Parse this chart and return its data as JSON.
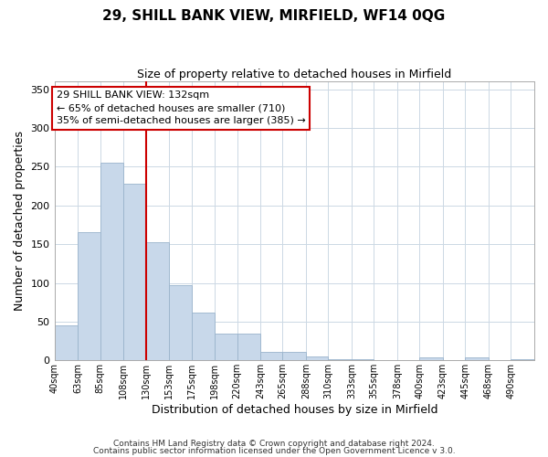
{
  "title": "29, SHILL BANK VIEW, MIRFIELD, WF14 0QG",
  "subtitle": "Size of property relative to detached houses in Mirfield",
  "xlabel": "Distribution of detached houses by size in Mirfield",
  "ylabel": "Number of detached properties",
  "bar_color": "#c8d8ea",
  "bar_edge_color": "#9ab4cc",
  "vline_color": "#cc0000",
  "vline_x": 130,
  "categories": [
    "40sqm",
    "63sqm",
    "85sqm",
    "108sqm",
    "130sqm",
    "153sqm",
    "175sqm",
    "198sqm",
    "220sqm",
    "243sqm",
    "265sqm",
    "288sqm",
    "310sqm",
    "333sqm",
    "355sqm",
    "378sqm",
    "400sqm",
    "423sqm",
    "445sqm",
    "468sqm",
    "490sqm"
  ],
  "bin_edges": [
    40,
    63,
    85,
    108,
    130,
    153,
    175,
    198,
    220,
    243,
    265,
    288,
    310,
    333,
    355,
    378,
    400,
    423,
    445,
    468,
    490
  ],
  "values": [
    45,
    165,
    255,
    228,
    152,
    97,
    62,
    34,
    34,
    11,
    11,
    5,
    1,
    1,
    0,
    0,
    4,
    0,
    4,
    0,
    1
  ],
  "ylim": [
    0,
    360
  ],
  "yticks": [
    0,
    50,
    100,
    150,
    200,
    250,
    300,
    350
  ],
  "annotation_title": "29 SHILL BANK VIEW: 132sqm",
  "annotation_line1": "← 65% of detached houses are smaller (710)",
  "annotation_line2": "35% of semi-detached houses are larger (385) →",
  "footer1": "Contains HM Land Registry data © Crown copyright and database right 2024.",
  "footer2": "Contains public sector information licensed under the Open Government Licence v 3.0.",
  "background_color": "#ffffff",
  "grid_color": "#ccd8e4"
}
